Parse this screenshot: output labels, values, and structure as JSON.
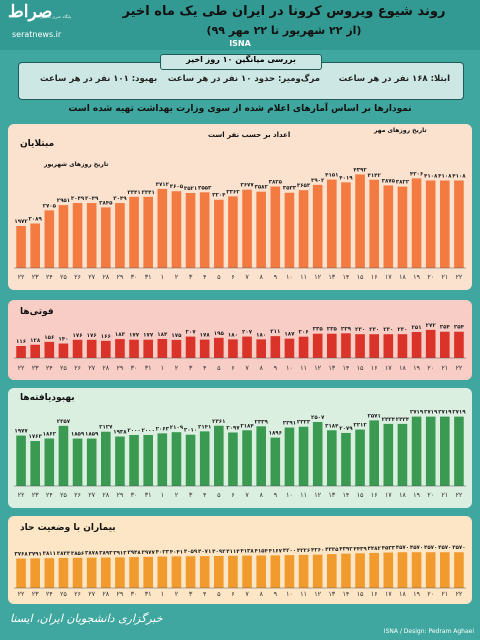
{
  "header": {
    "logo_mark": "صراط",
    "logo_tag": "پایگاه خبری تحلیلی",
    "logo_url": "seratnews.ir",
    "title": "روند شیوع ویروس کرونا در ایران طی یک ماه اخیر",
    "subtitle": "(از ۲۲ شهریور تا ۲۲ مهر ۹۹)",
    "agency": "ISNA"
  },
  "average": {
    "title": "بررسی میانگین ۱۰ روز اخیر",
    "infection": "ابتلا: ۱۶۸ نفر در هر ساعت",
    "death": "مرگ‌ومیر: حدود ۱۰ نفر در هر ساعت",
    "recovery": "بهبود: ۱۰۱ نفر در هر ساعت"
  },
  "note": "نمودارها بر اساس آمارهای اعلام شده از سوی وزارت بهداشت تهیه شده است",
  "footer": {
    "signature": "خبرگزاری دانشجویان ایران، ایسنا",
    "credit": "ISNA / Design: Pedram Aghaei"
  },
  "chart_data": [
    {
      "type": "bar",
      "title": "مبتلایان",
      "legend_count": "اعداد بر حسب نفر است",
      "legend_month_shahrivar": "تاریخ روزهای شهریور",
      "legend_month_mehr": "تاریخ روزهای مهر",
      "color": "#f37b42",
      "categories": [
        "۲۲",
        "۲۳",
        "۲۴",
        "۲۵",
        "۲۶",
        "۲۷",
        "۲۸",
        "۲۹",
        "۳۰",
        "۳۱",
        "۱",
        "۲",
        "۳",
        "۴",
        "۵",
        "۶",
        "۷",
        "۸",
        "۹",
        "۱۰",
        "۱۱",
        "۱۲",
        "۱۳",
        "۱۴",
        "۱۵",
        "۱۶",
        "۱۷",
        "۱۸",
        "۱۹",
        "۲۰",
        "۲۱",
        "۲۲"
      ],
      "values": [
        1972,
        2089,
        2705,
        2951,
        3049,
        3049,
        2845,
        3049,
        3341,
        3341,
        3712,
        3605,
        3521,
        3553,
        3204,
        3362,
        3677,
        3582,
        3825,
        3533,
        3653,
        3902,
        4151,
        4019,
        4392,
        4142,
        3875,
        3822,
        4206,
        4108,
        4108,
        4108
      ],
      "labels": [
        "۱۹۷۲",
        "۲۰۸۹",
        "۲۷۰۵",
        "۲۹۵۱",
        "۳۰۴۹",
        "۳۰۴۹",
        "۲۸۴۵",
        "۳۰۴۹",
        "۳۳۴۱",
        "۳۳۴۱",
        "۳۷۱۲",
        "۳۶۰۵",
        "۳۵۲۱",
        "۳۵۵۳",
        "۳۲۰۴",
        "۳۳۶۲",
        "۳۶۷۷",
        "۳۵۸۲",
        "۳۸۲۵",
        "۳۵۳۳",
        "۳۶۵۳",
        "۳۹۰۲",
        "۴۱۵۱",
        "۴۰۱۹",
        "۴۳۹۲",
        "۴۱۴۲",
        "۳۸۷۵",
        "۳۸۲۲",
        "۴۲۰۶",
        "۴۱۰۸",
        "۴۱۰۸",
        "۴۱۰۸"
      ],
      "ylim": [
        0,
        4600
      ]
    },
    {
      "type": "bar",
      "title": "فوتی‌ها",
      "color": "#d9332a",
      "categories": [
        "۲۲",
        "۲۳",
        "۲۴",
        "۲۵",
        "۲۶",
        "۲۷",
        "۲۸",
        "۲۹",
        "۳۰",
        "۳۱",
        "۱",
        "۲",
        "۳",
        "۴",
        "۵",
        "۶",
        "۷",
        "۸",
        "۹",
        "۱۰",
        "۱۱",
        "۱۲",
        "۱۳",
        "۱۴",
        "۱۵",
        "۱۶",
        "۱۷",
        "۱۸",
        "۱۹",
        "۲۰",
        "۲۱",
        "۲۲"
      ],
      "values": [
        116,
        128,
        156,
        140,
        176,
        176,
        166,
        183,
        177,
        177,
        184,
        175,
        207,
        178,
        195,
        180,
        207,
        180,
        211,
        187,
        206,
        235,
        235,
        239,
        230,
        230,
        230,
        230,
        251,
        272,
        254,
        254
      ],
      "labels": [
        "۱۱۶",
        "۱۲۸",
        "۱۵۶",
        "۱۴۰",
        "۱۷۶",
        "۱۷۶",
        "۱۶۶",
        "۱۸۳",
        "۱۷۷",
        "۱۷۷",
        "۱۸۴",
        "۱۷۵",
        "۲۰۷",
        "۱۷۸",
        "۱۹۵",
        "۱۸۰",
        "۲۰۷",
        "۱۸۰",
        "۲۱۱",
        "۱۸۷",
        "۲۰۶",
        "۲۳۵",
        "۲۳۵",
        "۲۳۹",
        "۲۳۰",
        "۲۳۰",
        "۲۳۰",
        "۲۳۰",
        "۲۵۱",
        "۲۷۲",
        "۲۵۴",
        "۲۵۴"
      ],
      "ylim": [
        0,
        290
      ]
    },
    {
      "type": "bar",
      "title": "بهبودیافته‌ها",
      "color": "#3a9a52",
      "categories": [
        "۲۲",
        "۲۳",
        "۲۴",
        "۲۵",
        "۲۶",
        "۲۷",
        "۲۸",
        "۲۹",
        "۳۰",
        "۳۱",
        "۱",
        "۲",
        "۳",
        "۴",
        "۵",
        "۶",
        "۷",
        "۸",
        "۹",
        "۱۰",
        "۱۱",
        "۱۲",
        "۱۳",
        "۱۴",
        "۱۵",
        "۱۶",
        "۱۷",
        "۱۸",
        "۱۹",
        "۲۰",
        "۲۱",
        "۲۲"
      ],
      "values": [
        1977,
        1763,
        1862,
        2357,
        1859,
        1859,
        2127,
        1938,
        2000,
        2000,
        2063,
        2109,
        2010,
        2141,
        2361,
        2097,
        2184,
        2339,
        1896,
        2291,
        2323,
        2507,
        2184,
        2079,
        2212,
        2571,
        2434,
        2434,
        2719,
        2719,
        2719,
        2719
      ],
      "labels": [
        "۱۹۷۷",
        "۱۷۶۳",
        "۱۸۶۲",
        "۲۳۵۷",
        "۱۸۵۹",
        "۱۸۵۹",
        "۲۱۲۷",
        "۱۹۳۸",
        "۲۰۰۰",
        "۲۰۰۰",
        "۲۰۶۳",
        "۲۱۰۹",
        "۲۰۱۰",
        "۲۱۴۱",
        "۲۳۶۱",
        "۲۰۹۷",
        "۲۱۸۴",
        "۲۳۳۹",
        "۱۸۹۶",
        "۲۲۹۱",
        "۲۳۲۳",
        "۲۵۰۷",
        "۲۱۸۴",
        "۲۰۷۹",
        "۲۲۱۲",
        "۲۵۷۱",
        "۲۴۳۴",
        "۲۴۳۴",
        "۲۷۱۹",
        "۲۷۱۹",
        "۲۷۱۹",
        "۲۷۱۹"
      ],
      "ylim": [
        0,
        2900
      ]
    },
    {
      "type": "bar",
      "title": "بیماران با وضعیت حاد",
      "color": "#f19a2e",
      "categories": [
        "۲۲",
        "۲۳",
        "۲۴",
        "۲۵",
        "۲۶",
        "۲۷",
        "۲۸",
        "۲۹",
        "۳۰",
        "۳۱",
        "۱",
        "۲",
        "۳",
        "۴",
        "۵",
        "۶",
        "۷",
        "۸",
        "۹",
        "۱۰",
        "۱۱",
        "۱۲",
        "۱۳",
        "۱۴",
        "۱۵",
        "۱۶",
        "۱۷",
        "۱۸",
        "۱۹",
        "۲۰",
        "۲۱",
        "۲۲"
      ],
      "values": [
        3768,
        3791,
        3811,
        3833,
        3856,
        3878,
        3893,
        3912,
        3948,
        3977,
        4023,
        4041,
        4059,
        4071,
        4092,
        4114,
        4138,
        4154,
        4167,
        4200,
        4226,
        4260,
        4335,
        4392,
        4439,
        4482,
        4533,
        4570,
        4570,
        4570,
        4570,
        4570
      ],
      "labels": [
        "۳۷۶۸",
        "۳۷۹۱",
        "۳۸۱۱",
        "۳۸۳۳",
        "۳۸۵۶",
        "۳۸۷۸",
        "۳۸۹۳",
        "۳۹۱۲",
        "۳۹۴۸",
        "۳۹۷۷",
        "۴۰۲۳",
        "۴۰۴۱",
        "۴۰۵۹",
        "۴۰۷۱",
        "۴۰۹۲",
        "۴۱۱۴",
        "۴۱۳۸",
        "۴۱۵۴",
        "۴۱۶۷",
        "۴۲۰۰",
        "۴۲۲۶",
        "۴۲۶۰",
        "۴۳۳۵",
        "۴۳۹۲",
        "۴۴۳۹",
        "۴۴۸۲",
        "۴۵۳۳",
        "۴۵۷۰",
        "۴۵۷۰",
        "۴۵۷۰",
        "۴۵۷۰",
        "۴۵۷۰"
      ],
      "ylim": [
        0,
        4600
      ]
    }
  ]
}
